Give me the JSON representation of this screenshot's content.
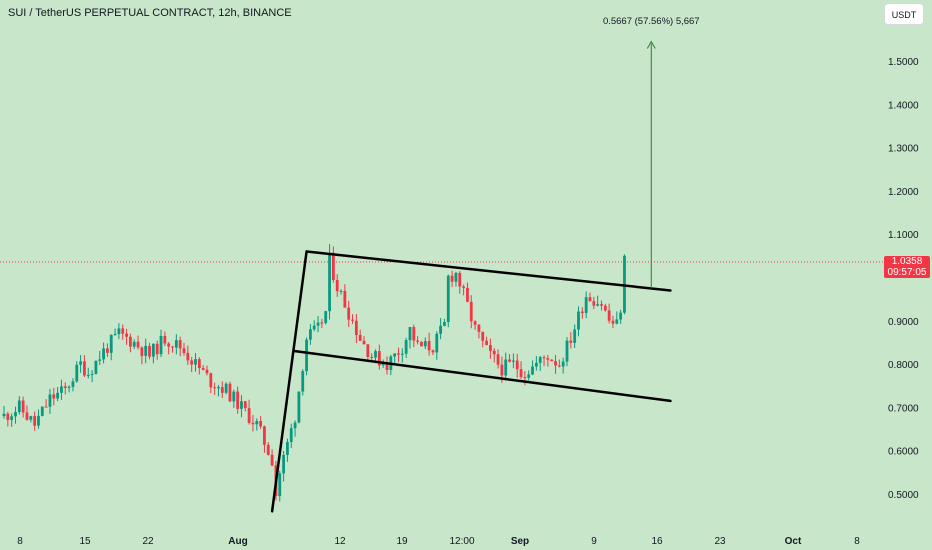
{
  "header": {
    "title": "SUI / TetherUS PERPETUAL CONTRACT, 12h, BINANCE"
  },
  "currency_button": {
    "label": "USDT"
  },
  "last_price": {
    "value": "1.0358",
    "countdown": "09:57:05"
  },
  "projection": {
    "label": "0.5667 (57.56%) 5,667"
  },
  "colors": {
    "up": "#089981",
    "down": "#f23645",
    "background": "#c8e6c9",
    "projection": "#2e7d32"
  },
  "chart_data": {
    "type": "candlestick",
    "title": "SUI / TetherUS PERPETUAL CONTRACT, 12h, BINANCE",
    "y_ticks": [
      "1.5000",
      "1.4000",
      "1.3000",
      "1.2000",
      "1.1000",
      "0.9000",
      "0.8000",
      "0.7000",
      "0.6000",
      "0.5000"
    ],
    "x_ticks": [
      {
        "label": "8",
        "bold": false
      },
      {
        "label": "15",
        "bold": false
      },
      {
        "label": "22",
        "bold": false
      },
      {
        "label": "Aug",
        "bold": true
      },
      {
        "label": "12",
        "bold": false
      },
      {
        "label": "19",
        "bold": false
      },
      {
        "label": "12:00",
        "bold": false
      },
      {
        "label": "Sep",
        "bold": true
      },
      {
        "label": "9",
        "bold": false
      },
      {
        "label": "16",
        "bold": false
      },
      {
        "label": "23",
        "bold": false
      },
      {
        "label": "Oct",
        "bold": true
      },
      {
        "label": "8",
        "bold": false
      }
    ],
    "ylim": [
      0.46,
      1.6
    ],
    "price_points": [
      [
        0,
        0.68
      ],
      [
        4,
        0.7
      ],
      [
        8,
        0.66
      ],
      [
        12,
        0.72
      ],
      [
        16,
        0.74
      ],
      [
        20,
        0.8
      ],
      [
        22,
        0.78
      ],
      [
        26,
        0.83
      ],
      [
        30,
        0.87
      ],
      [
        34,
        0.85
      ],
      [
        38,
        0.82
      ],
      [
        42,
        0.86
      ],
      [
        46,
        0.84
      ],
      [
        50,
        0.8
      ],
      [
        54,
        0.76
      ],
      [
        58,
        0.74
      ],
      [
        62,
        0.7
      ],
      [
        66,
        0.66
      ],
      [
        70,
        0.58
      ],
      [
        71,
        0.5
      ],
      [
        72,
        0.55
      ],
      [
        76,
        0.68
      ],
      [
        79,
        0.86
      ],
      [
        82,
        0.88
      ],
      [
        84,
        0.92
      ],
      [
        85,
        1.04
      ],
      [
        87,
        0.98
      ],
      [
        90,
        0.92
      ],
      [
        93,
        0.86
      ],
      [
        96,
        0.82
      ],
      [
        100,
        0.8
      ],
      [
        104,
        0.84
      ],
      [
        106,
        0.88
      ],
      [
        108,
        0.84
      ],
      [
        112,
        0.84
      ],
      [
        115,
        0.89
      ],
      [
        116,
        1.0
      ],
      [
        118,
        1.01
      ],
      [
        120,
        0.96
      ],
      [
        123,
        0.88
      ],
      [
        126,
        0.83
      ],
      [
        130,
        0.79
      ],
      [
        133,
        0.8
      ],
      [
        136,
        0.78
      ],
      [
        139,
        0.8
      ],
      [
        142,
        0.82
      ],
      [
        145,
        0.8
      ],
      [
        148,
        0.86
      ],
      [
        152,
        0.96
      ],
      [
        156,
        0.94
      ],
      [
        158,
        0.9
      ],
      [
        160,
        0.89
      ],
      [
        161,
        0.93
      ],
      [
        162,
        1.04
      ]
    ],
    "trendlines": [
      {
        "from": [
          70,
          0.46
        ],
        "to": [
          79,
          1.06
        ]
      },
      {
        "from": [
          79,
          1.06
        ],
        "to": [
          174,
          0.97
        ]
      },
      {
        "from": [
          76,
          0.83
        ],
        "to": [
          174,
          0.715
        ]
      }
    ],
    "last_price_line": 1.0358,
    "projection_arrow": {
      "x": 169,
      "from": 0.975,
      "to": 1.545
    }
  }
}
